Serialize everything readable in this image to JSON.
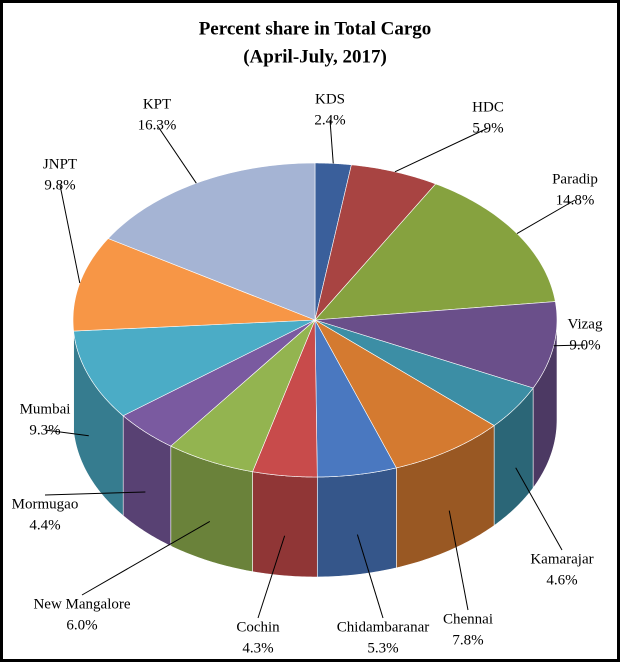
{
  "chart_data": {
    "type": "pie",
    "title": "Percent share in Total Cargo",
    "subtitle": "(April-July, 2017)",
    "categories": [
      "KDS",
      "HDC",
      "Paradip",
      "Vizag",
      "Kamarajar",
      "Chennai",
      "Chidambaranar",
      "Cochin",
      "New Mangalore",
      "Mormugao",
      "Mumbai",
      "JNPT",
      "KPT"
    ],
    "values": [
      2.4,
      5.9,
      14.8,
      9.0,
      4.6,
      7.8,
      5.3,
      4.3,
      6.0,
      4.4,
      9.3,
      9.8,
      16.3
    ],
    "value_labels": [
      "2.4%",
      "5.9%",
      "14.8%",
      "9.0%",
      "4.6%",
      "7.8%",
      "5.3%",
      "4.3%",
      "6.0%",
      "4.4%",
      "9.3%",
      "9.8%",
      "16.3%"
    ],
    "colors": [
      "#3a5f9b",
      "#a84442",
      "#86a23f",
      "#6a4f8a",
      "#3c8ea5",
      "#d47a30",
      "#4a78c0",
      "#c84b4b",
      "#93b450",
      "#7a5aa0",
      "#4bacc6",
      "#f79646",
      "#a5b4d4"
    ]
  }
}
